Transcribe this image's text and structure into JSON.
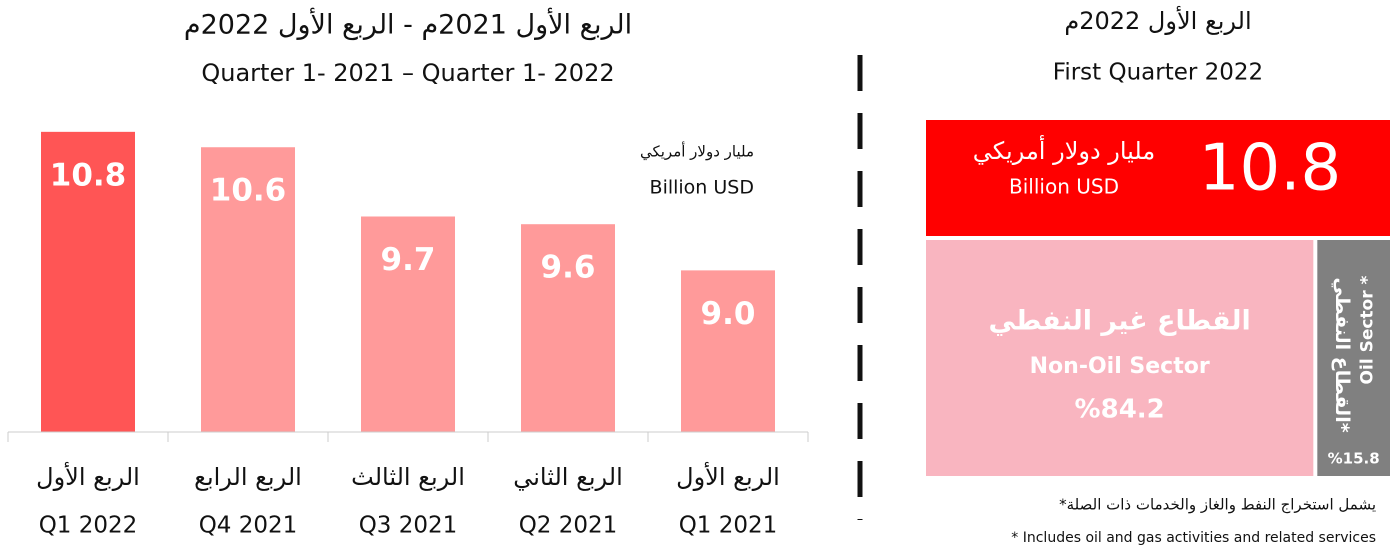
{
  "chart_data": [
    {
      "type": "bar",
      "title": "الربع الأول 2021م - الربع الأول 2022م",
      "subtitle": "Quarter 1- 2021 – Quarter 1- 2022",
      "unit_ar": "مليار دولار أمريكي",
      "unit": "Billion USD",
      "categories_ar": [
        "الربع الأول",
        "الربع الرابع",
        "الربع الثالث",
        "الربع الثاني",
        "الربع الأول"
      ],
      "categories": [
        "Q1 2022",
        "Q4 2021",
        "Q3 2021",
        "Q2 2021",
        "Q1 2021"
      ],
      "values": [
        10.8,
        10.6,
        9.7,
        9.6,
        9.0
      ],
      "value_labels": [
        "10.8",
        "10.6",
        "9.7",
        "9.6",
        "9.0"
      ],
      "colors": [
        "#ff5555",
        "#ff9a9a",
        "#ff9a9a",
        "#ff9a9a",
        "#ff9a9a"
      ],
      "ylim": [
        6.9,
        12.5
      ]
    },
    {
      "type": "treemap",
      "title_ar": "الربع الأول 2022م",
      "title": "First Quarter 2022",
      "total": 10.8,
      "total_unit_ar": "مليار دولار أمريكي",
      "total_unit": "Billion USD",
      "total_color": "#ff0000",
      "categories_ar": [
        "القطاع غير النفطي",
        "القطاع النفطي*"
      ],
      "categories": [
        "Non-Oil Sector",
        "Oil Sector *"
      ],
      "values": [
        84.2,
        15.8
      ],
      "value_labels": [
        "%84.2",
        "%15.8"
      ],
      "colors": [
        "#f9b5c0",
        "#808080"
      ],
      "footnote_ar": "*يشمل استخراج النفط والغاز والخدمات ذات الصلة",
      "footnote": "* Includes oil and gas activities and related services"
    }
  ]
}
